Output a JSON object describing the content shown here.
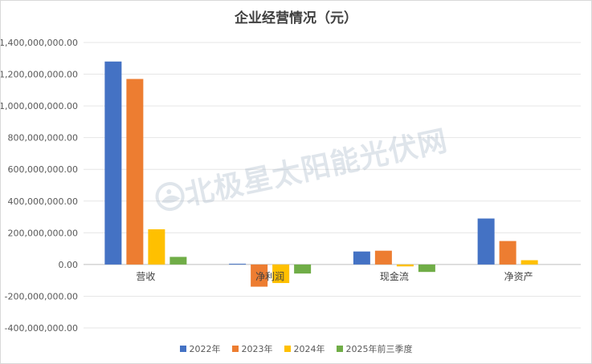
{
  "chart_data": {
    "type": "bar",
    "title": "企业经营情况（元）",
    "categories": [
      "营收",
      "净利润",
      "现金流",
      "净资产"
    ],
    "series": [
      {
        "name": "2022年",
        "color": "#4472c4",
        "values": [
          1280000000,
          5000000,
          82000000,
          290000000
        ]
      },
      {
        "name": "2023年",
        "color": "#ed7d31",
        "values": [
          1170000000,
          -140000000,
          87000000,
          148000000
        ]
      },
      {
        "name": "2024年",
        "color": "#ffc000",
        "values": [
          222000000,
          -117000000,
          -12000000,
          27000000
        ]
      },
      {
        "name": "2025年前三季度",
        "color": "#70ad47",
        "values": [
          48000000,
          -57000000,
          -47000000,
          0
        ]
      }
    ],
    "yticks": [
      "1,400,000,000.00",
      "1,200,000,000.00",
      "1,000,000,000.00",
      "800,000,000.00",
      "600,000,000.00",
      "400,000,000.00",
      "200,000,000.00",
      "0.00",
      "-200,000,000.00",
      "-400,000,000.00"
    ],
    "ylim": [
      -400000000,
      1400000000
    ],
    "grid": true,
    "legend_position": "bottom"
  },
  "watermark": {
    "text": "北极星太阳能光伏网",
    "icon": "polaris-logo-icon"
  }
}
